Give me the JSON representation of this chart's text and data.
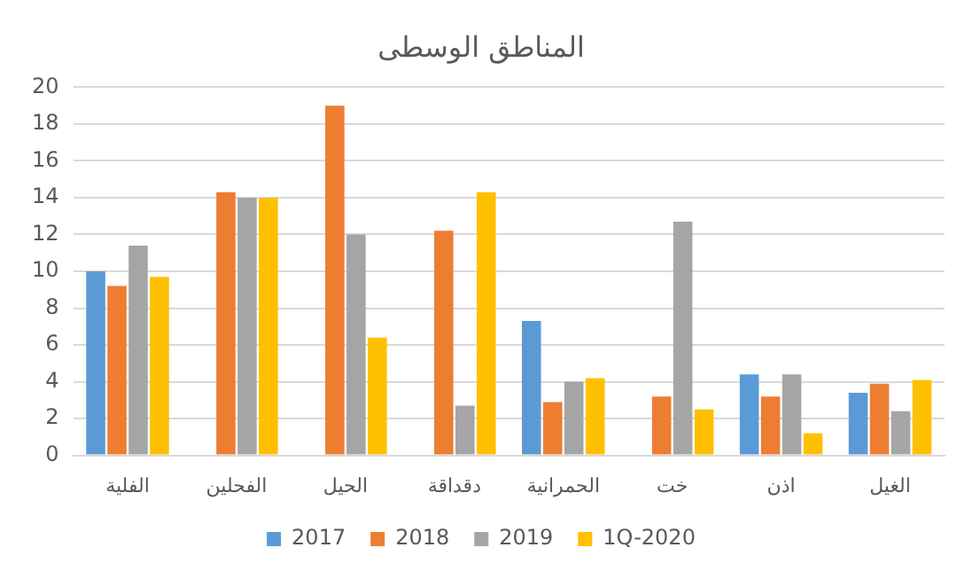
{
  "chart_data": {
    "type": "bar",
    "title": "المناطق الوسطى",
    "categories": [
      "الفلية",
      "الفحلين",
      "الحيل",
      "دقداقة",
      "الحمرانية",
      "خت",
      "اذن",
      "الغيل"
    ],
    "series": [
      {
        "name": "2017",
        "color": "#5b9bd5",
        "values": [
          10,
          null,
          null,
          null,
          7.3,
          null,
          4.4,
          3.4
        ]
      },
      {
        "name": "2018",
        "color": "#ed7d31",
        "values": [
          9.2,
          14.3,
          19,
          12.2,
          2.9,
          3.2,
          3.2,
          3.9
        ]
      },
      {
        "name": "2019",
        "color": "#a5a5a5",
        "values": [
          11.4,
          14,
          12,
          2.7,
          4,
          12.7,
          4.4,
          2.4
        ]
      },
      {
        "name": "1Q-2020",
        "color": "#ffc000",
        "values": [
          9.7,
          14,
          6.4,
          14.3,
          4.2,
          2.5,
          1.2,
          4.1
        ]
      }
    ],
    "ylim": [
      0,
      20
    ],
    "yticks": [
      0,
      2,
      4,
      6,
      8,
      10,
      12,
      14,
      16,
      18,
      20
    ],
    "grid": "y",
    "legend": "bottom"
  }
}
